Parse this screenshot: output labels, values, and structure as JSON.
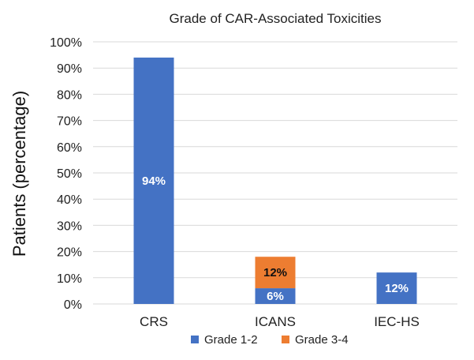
{
  "chart_data": {
    "type": "bar",
    "stacked": true,
    "title": "Grade of CAR-Associated Toxicities",
    "ylabel": "Patients (percentage)",
    "xlabel": "",
    "ylim": [
      0,
      100
    ],
    "yticks": [
      "0%",
      "10%",
      "20%",
      "30%",
      "40%",
      "50%",
      "60%",
      "70%",
      "80%",
      "90%",
      "100%"
    ],
    "categories": [
      "CRS",
      "ICANS",
      "IEC-HS"
    ],
    "series": [
      {
        "name": "Grade 1-2",
        "color": "#4472c4",
        "values": [
          94,
          6,
          12
        ],
        "labels": [
          "94%",
          "6%",
          "12%"
        ],
        "label_color": "#ffffff"
      },
      {
        "name": "Grade 3-4",
        "color": "#ed7d31",
        "values": [
          0,
          12,
          0
        ],
        "labels": [
          "",
          "12%",
          ""
        ],
        "label_color": "#111111"
      }
    ],
    "grid": true,
    "legend_position": "bottom"
  }
}
